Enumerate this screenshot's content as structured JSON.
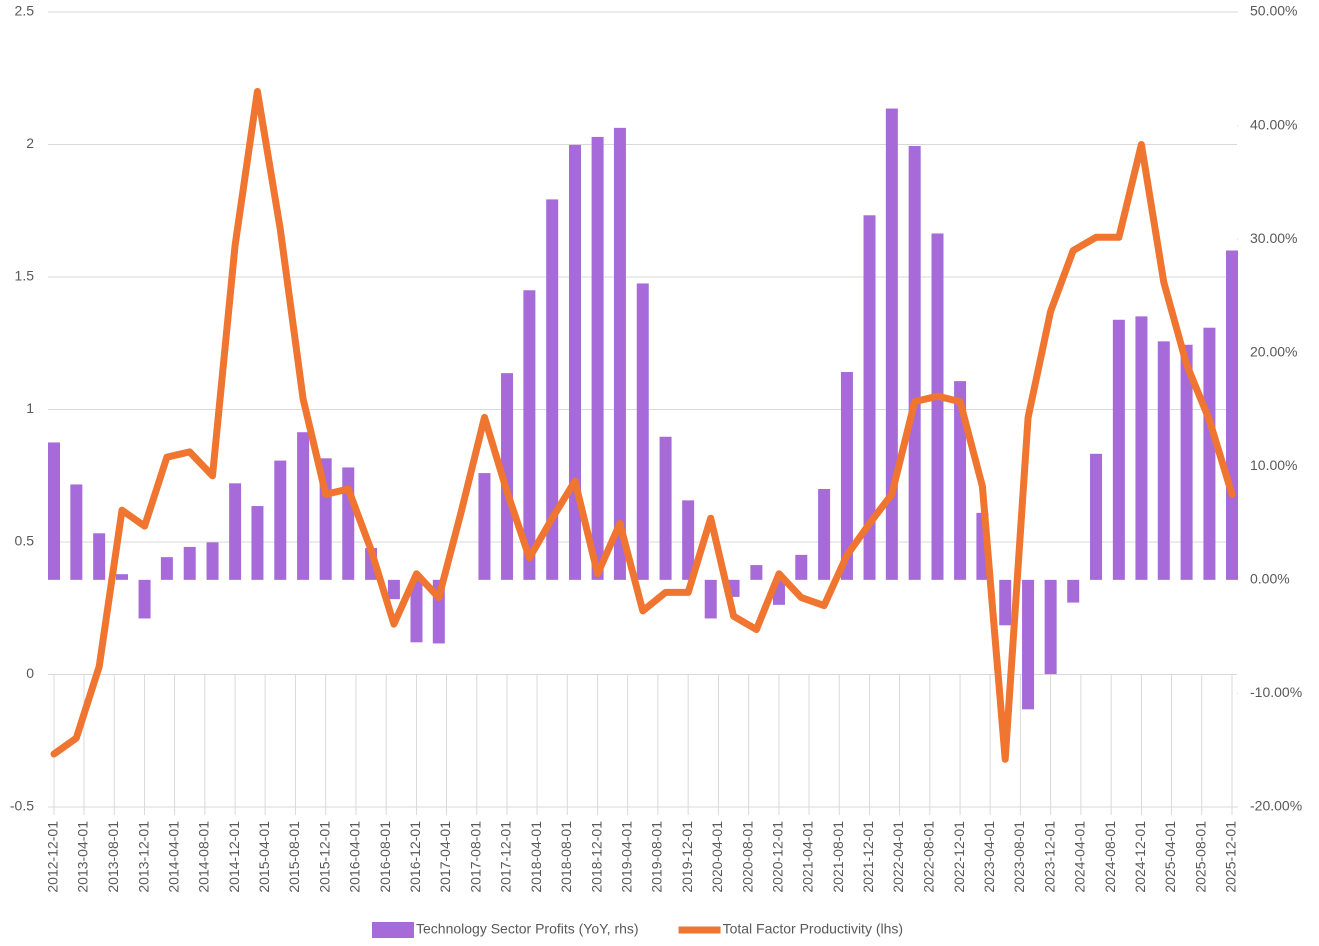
{
  "chart_data": {
    "type": "combo",
    "x": [
      "2012-12-01",
      "2013-03-01",
      "2013-06-01",
      "2013-09-01",
      "2013-12-01",
      "2014-03-01",
      "2014-06-01",
      "2014-09-01",
      "2014-12-01",
      "2015-03-01",
      "2015-06-01",
      "2015-09-01",
      "2015-12-01",
      "2016-03-01",
      "2016-06-01",
      "2016-09-01",
      "2016-12-01",
      "2017-03-01",
      "2017-06-01",
      "2017-09-01",
      "2017-12-01",
      "2018-03-01",
      "2018-06-01",
      "2018-09-01",
      "2018-12-01",
      "2019-03-01",
      "2019-06-01",
      "2019-09-01",
      "2019-12-01",
      "2020-03-01",
      "2020-06-01",
      "2020-09-01",
      "2020-12-01",
      "2021-03-01",
      "2021-06-01",
      "2021-09-01",
      "2021-12-01",
      "2022-03-01",
      "2022-06-01",
      "2022-09-01",
      "2022-12-01",
      "2023-03-01",
      "2023-06-01",
      "2023-09-01",
      "2023-12-01",
      "2024-03-01",
      "2024-06-01",
      "2024-09-01",
      "2024-12-01",
      "2025-03-01",
      "2025-06-01",
      "2025-09-01",
      "2025-12-01"
    ],
    "series": [
      {
        "name": "Technology Sector Profits (YoY, rhs)",
        "type": "bar",
        "axis": "y2",
        "color": "#a66bd8",
        "values": [
          12.1,
          8.4,
          4.1,
          0.5,
          -3.4,
          2.0,
          2.9,
          3.3,
          8.5,
          6.5,
          10.5,
          13.0,
          10.7,
          9.9,
          2.8,
          -1.7,
          -5.5,
          -5.6,
          0,
          9.4,
          18.2,
          25.5,
          33.5,
          38.3,
          39.0,
          39.8,
          26.1,
          12.6,
          7.0,
          -3.4,
          -1.5,
          1.3,
          -2.2,
          2.2,
          8.0,
          18.3,
          32.1,
          41.5,
          38.2,
          30.5,
          17.5,
          5.9,
          -4.0,
          -11.4,
          -8.3,
          -2.0,
          11.1,
          22.9,
          23.2,
          21.0,
          20.7,
          22.2,
          29.0
        ]
      },
      {
        "name": "Total Factor Productivity (lhs)",
        "type": "line",
        "axis": "y",
        "color": "#ef7530",
        "values": [
          -0.3,
          -0.24,
          0.03,
          0.62,
          0.56,
          0.82,
          0.84,
          0.75,
          1.62,
          2.2,
          1.68,
          1.04,
          0.68,
          0.7,
          0.47,
          0.19,
          0.38,
          0.29,
          0.62,
          0.97,
          0.69,
          0.44,
          0.59,
          0.73,
          0.38,
          0.57,
          0.24,
          0.31,
          0.31,
          0.59,
          0.22,
          0.17,
          0.38,
          0.29,
          0.26,
          0.45,
          0.57,
          0.68,
          1.03,
          1.05,
          1.03,
          0.71,
          -0.32,
          0.97,
          1.37,
          1.6,
          1.65,
          1.65,
          2.0,
          1.48,
          1.17,
          0.96,
          0.68
        ]
      }
    ],
    "ylim": [
      -0.5,
      2.5
    ],
    "yticks": [
      2.5,
      2,
      1.5,
      1,
      0.5,
      0,
      -0.5
    ],
    "y2lim": [
      -20,
      50
    ],
    "y2ticks": [
      {
        "value": 50,
        "label": "50.00%"
      },
      {
        "value": 40,
        "label": "40.00%"
      },
      {
        "value": 30,
        "label": "30.00%"
      },
      {
        "value": 20,
        "label": "20.00%"
      },
      {
        "value": 10,
        "label": "10.00%"
      },
      {
        "value": 0,
        "label": "0.00%"
      },
      {
        "value": -10,
        "label": "-10.00%"
      },
      {
        "value": -20,
        "label": "-20.00%"
      }
    ],
    "xticks": [
      "2012-12-01",
      "2013-04-01",
      "2013-08-01",
      "2013-12-01",
      "2014-04-01",
      "2014-08-01",
      "2014-12-01",
      "2015-04-01",
      "2015-08-01",
      "2015-12-01",
      "2016-04-01",
      "2016-08-01",
      "2016-12-01",
      "2017-04-01",
      "2017-08-01",
      "2017-12-01",
      "2018-04-01",
      "2018-08-01",
      "2018-12-01",
      "2019-04-01",
      "2019-08-01",
      "2019-12-01",
      "2020-04-01",
      "2020-08-01",
      "2020-12-01",
      "2021-04-01",
      "2021-08-01",
      "2021-12-01",
      "2022-04-01",
      "2022-08-01",
      "2022-12-01",
      "2023-04-01",
      "2023-08-01",
      "2023-12-01",
      "2024-04-01",
      "2024-08-01",
      "2024-12-01",
      "2025-04-01",
      "2025-08-01",
      "2025-12-01"
    ],
    "grid": true,
    "legend": "bottom"
  }
}
